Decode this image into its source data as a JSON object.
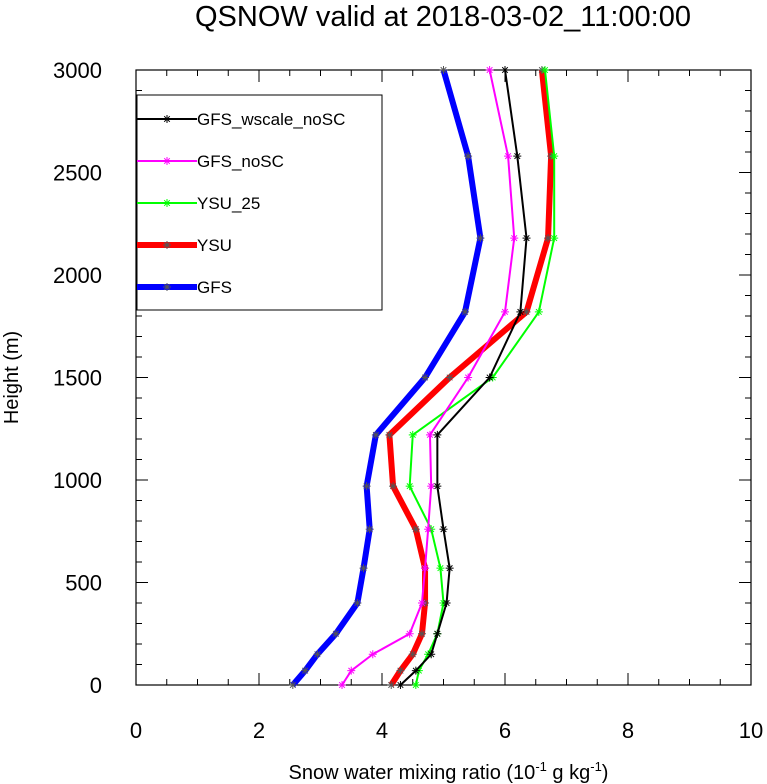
{
  "chart_data": {
    "type": "line",
    "title": "QSNOW valid at 2018-03-02_11:00:00",
    "xlabel": "Snow water mixing ratio (10",
    "xlabel_sup1": "-1",
    "xlabel_mid": " g kg",
    "xlabel_sup2": "-1",
    "xlabel_end": ")",
    "ylabel": "Height (m)",
    "xlim": [
      0,
      10
    ],
    "ylim": [
      0,
      3000
    ],
    "xticks": [
      0,
      2,
      4,
      6,
      8,
      10
    ],
    "yticks": [
      0,
      500,
      1000,
      1500,
      2000,
      2500,
      3000
    ],
    "legend_position": "top-left",
    "series": [
      {
        "name": "GFS_wscale_noSC",
        "color": "#000000",
        "width": 2,
        "x": [
          4.3,
          4.55,
          4.8,
          4.9,
          5.05,
          5.1,
          5.0,
          4.9,
          4.9,
          5.75,
          6.25,
          6.35,
          6.2,
          6.0
        ],
        "y": [
          0,
          70,
          150,
          250,
          400,
          570,
          760,
          970,
          1220,
          1500,
          1820,
          2180,
          2580,
          3000
        ]
      },
      {
        "name": "GFS_noSC",
        "color": "#ff00ff",
        "width": 2,
        "x": [
          3.35,
          3.5,
          3.85,
          4.45,
          4.65,
          4.7,
          4.75,
          4.8,
          4.78,
          5.4,
          6.0,
          6.15,
          6.05,
          5.75
        ],
        "y": [
          0,
          70,
          150,
          250,
          400,
          570,
          760,
          970,
          1220,
          1500,
          1820,
          2180,
          2580,
          3000
        ]
      },
      {
        "name": "YSU_25",
        "color": "#00ff00",
        "width": 2,
        "x": [
          4.55,
          4.6,
          4.75,
          4.9,
          5.0,
          4.95,
          4.8,
          4.45,
          4.5,
          5.8,
          6.55,
          6.8,
          6.8,
          6.65
        ],
        "y": [
          0,
          70,
          150,
          250,
          400,
          570,
          760,
          970,
          1220,
          1500,
          1820,
          2180,
          2580,
          3000
        ]
      },
      {
        "name": "YSU",
        "color": "#ff0000",
        "width": 6,
        "x": [
          4.15,
          4.3,
          4.5,
          4.65,
          4.7,
          4.7,
          4.55,
          4.18,
          4.12,
          5.1,
          6.35,
          6.7,
          6.75,
          6.6
        ],
        "y": [
          0,
          70,
          150,
          250,
          400,
          570,
          760,
          970,
          1220,
          1500,
          1820,
          2180,
          2580,
          3000
        ]
      },
      {
        "name": "GFS",
        "color": "#0000ff",
        "width": 6,
        "x": [
          2.55,
          2.75,
          2.95,
          3.25,
          3.6,
          3.7,
          3.8,
          3.75,
          3.9,
          4.7,
          5.35,
          5.6,
          5.4,
          5.0
        ],
        "y": [
          0,
          70,
          150,
          250,
          400,
          570,
          760,
          970,
          1220,
          1500,
          1820,
          2180,
          2580,
          3000
        ]
      }
    ]
  }
}
